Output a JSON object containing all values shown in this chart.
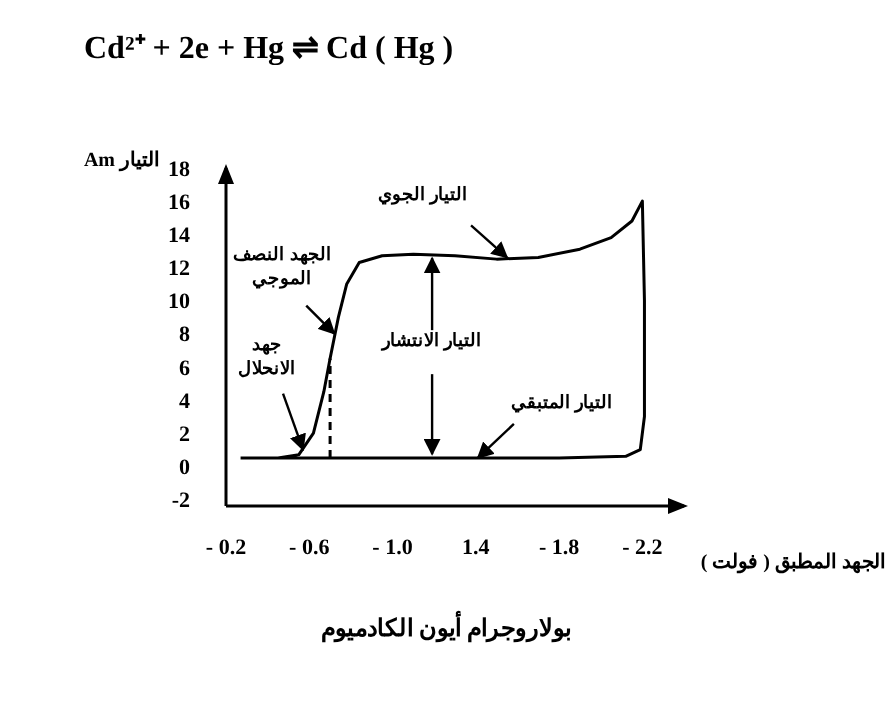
{
  "chart_data": {
    "type": "line",
    "title": "Cd²⁺ + 2e + Hg ⇌ Cd ( Hg )",
    "xlabel": "الجهد المطبق ( فولت )",
    "ylabel": "التيار Am",
    "x": [
      -0.27,
      -0.45,
      -0.55,
      -0.62,
      -0.67,
      -0.7,
      -0.74,
      -0.78,
      -0.84,
      -0.95,
      -1.1,
      -1.3,
      -1.5,
      -1.7,
      -1.9,
      -2.05,
      -2.15,
      -2.2,
      -2.21,
      -2.21,
      -2.19,
      -2.12,
      -1.8,
      -1.2,
      -0.45
    ],
    "series": [
      {
        "type": "line",
        "color": "#000000",
        "values": [
          0.5,
          0.5,
          0.7,
          2,
          4.5,
          6.5,
          9,
          11,
          12.3,
          12.7,
          12.8,
          12.7,
          12.5,
          12.6,
          13.1,
          13.8,
          14.8,
          16,
          10,
          3,
          1,
          0.6,
          0.5,
          0.5,
          0.5
        ]
      },
      {
        "type": "line",
        "color": "#000000",
        "line_style": "dashed",
        "x": [
          -0.7,
          -0.7
        ],
        "values": [
          0.5,
          6.5
        ]
      }
    ],
    "xlim": [
      -0.2,
      -2.4
    ],
    "xticks": [
      {
        "value": -0.2,
        "label": "- 0.2"
      },
      {
        "value": -0.6,
        "label": "- 0.6"
      },
      {
        "value": -1.0,
        "label": "- 1.0"
      },
      {
        "value": -1.4,
        "label": "1.4"
      },
      {
        "value": -1.8,
        "label": "- 1.8"
      },
      {
        "value": -2.2,
        "label": "- 2.2"
      }
    ],
    "ylim": [
      -2.4,
      18
    ],
    "yticks": [
      -2,
      0,
      2,
      4,
      6,
      8,
      10,
      12,
      14,
      16,
      18
    ],
    "marker": "none",
    "line_style": "solid",
    "annotations": [
      {
        "text": "الجهد النصف الموجي",
        "x": -0.72,
        "y": 8
      },
      {
        "text": "جهد الانحلال",
        "x": -0.57,
        "y": 1
      },
      {
        "text": "التيار الجوي",
        "x": -1.55,
        "y": 12.6
      },
      {
        "text": "التيار المتبقي",
        "x": -1.41,
        "y": 0.5
      },
      {
        "text": "التيار الانتشار",
        "x": -1.19,
        "y": 12.8
      },
      "بولاروجرام أيون الكادميوم"
    ]
  }
}
